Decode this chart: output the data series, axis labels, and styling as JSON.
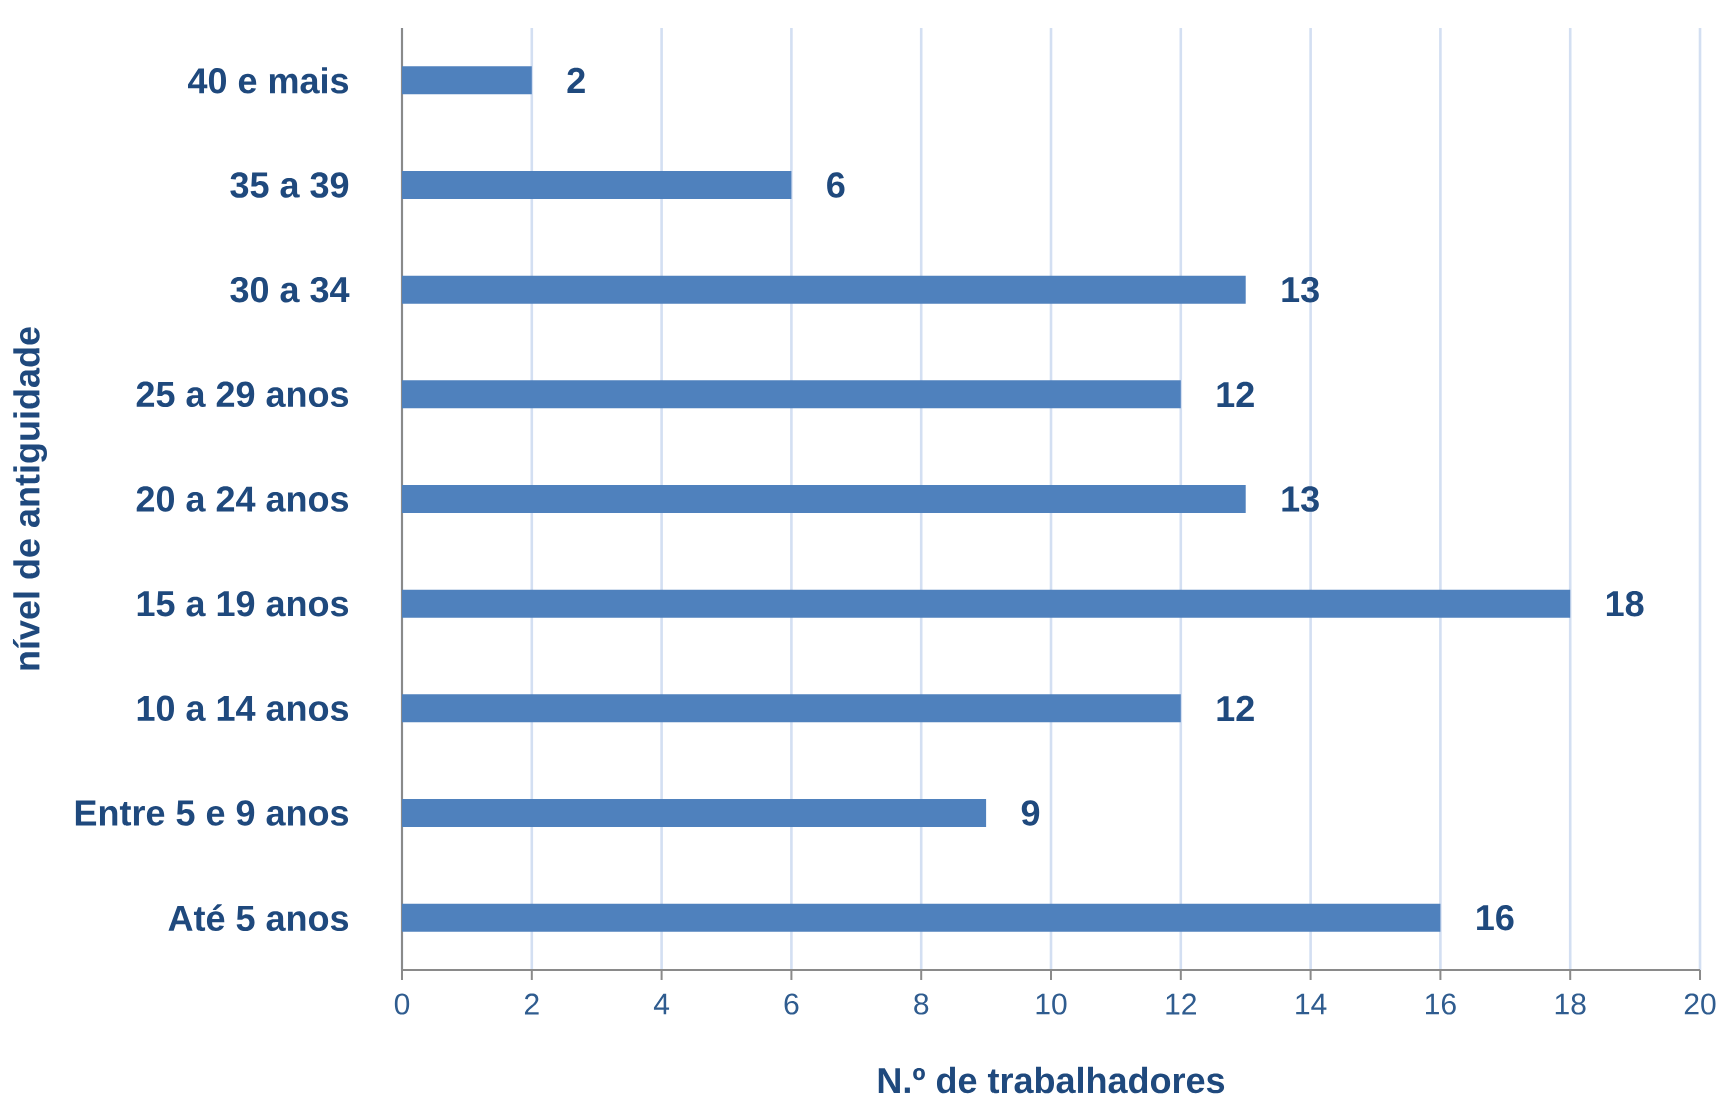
{
  "chart_data": {
    "type": "bar",
    "orientation": "horizontal",
    "categories": [
      "40 e mais",
      "35 a 39",
      "30 a 34",
      "25 a 29 anos",
      "20 a 24 anos",
      "15 a 19 anos",
      "10 a 14 anos",
      "Entre 5 e 9 anos",
      "Até 5 anos"
    ],
    "values": [
      2,
      6,
      13,
      12,
      13,
      18,
      12,
      9,
      16
    ],
    "color": "#4f81bd",
    "xlim": [
      0,
      20
    ],
    "xticks": [
      0,
      2,
      4,
      6,
      8,
      10,
      12,
      14,
      16,
      18,
      20
    ],
    "xlabel": "N.º de trabalhadores",
    "ylabel": "nível de antiguidade",
    "grid": "x",
    "data_labels": true
  }
}
